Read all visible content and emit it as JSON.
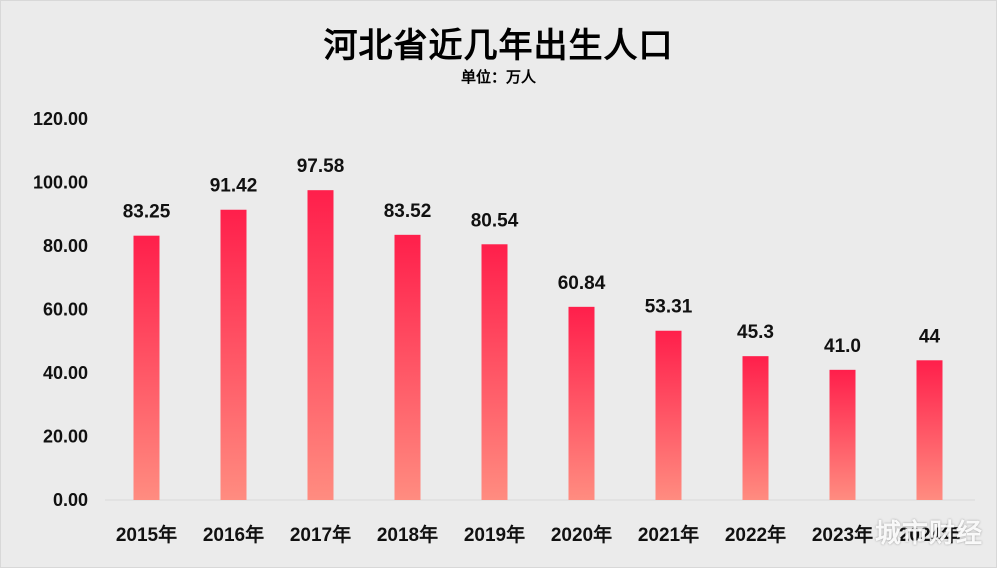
{
  "chart_data": {
    "type": "bar",
    "title": "河北省近几年出生人口",
    "subtitle": "单位：万人",
    "categories": [
      "2015年",
      "2016年",
      "2017年",
      "2018年",
      "2019年",
      "2020年",
      "2021年",
      "2022年",
      "2023年",
      "2024年"
    ],
    "values": [
      83.25,
      91.42,
      97.58,
      83.52,
      80.54,
      60.84,
      53.31,
      45.3,
      41.0,
      44
    ],
    "data_labels": [
      "83.25",
      "91.42",
      "97.58",
      "83.52",
      "80.54",
      "60.84",
      "53.31",
      "45.3",
      "41.0",
      "44"
    ],
    "yticks": [
      "0.00",
      "20.00",
      "40.00",
      "60.00",
      "80.00",
      "100.00",
      "120.00"
    ],
    "ylim": [
      0,
      120
    ],
    "grid": false,
    "bar_color_top": "#ff1f4b",
    "bar_color_bottom": "#ff8c80"
  },
  "watermark": "城市财经"
}
